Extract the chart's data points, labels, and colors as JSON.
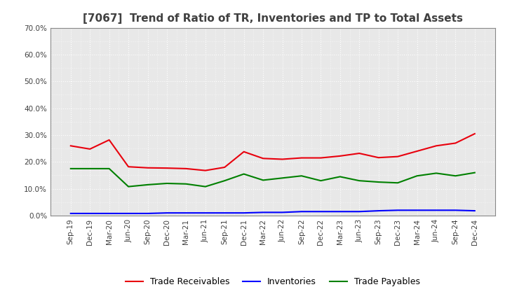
{
  "title": "[7067]  Trend of Ratio of TR, Inventories and TP to Total Assets",
  "x_labels": [
    "Sep-19",
    "Dec-19",
    "Mar-20",
    "Jun-20",
    "Sep-20",
    "Dec-20",
    "Mar-21",
    "Jun-21",
    "Sep-21",
    "Dec-21",
    "Mar-22",
    "Jun-22",
    "Sep-22",
    "Dec-22",
    "Mar-23",
    "Jun-23",
    "Sep-23",
    "Dec-23",
    "Mar-24",
    "Jun-24",
    "Sep-24",
    "Dec-24"
  ],
  "trade_receivables": [
    0.26,
    0.248,
    0.282,
    0.182,
    0.178,
    0.177,
    0.175,
    0.168,
    0.18,
    0.238,
    0.213,
    0.21,
    0.215,
    0.215,
    0.222,
    0.232,
    0.216,
    0.22,
    0.24,
    0.26,
    0.27,
    0.305
  ],
  "inventories": [
    0.008,
    0.008,
    0.008,
    0.008,
    0.008,
    0.01,
    0.01,
    0.01,
    0.01,
    0.01,
    0.012,
    0.012,
    0.015,
    0.015,
    0.015,
    0.015,
    0.018,
    0.02,
    0.02,
    0.02,
    0.02,
    0.018
  ],
  "trade_payables": [
    0.175,
    0.175,
    0.175,
    0.108,
    0.115,
    0.12,
    0.118,
    0.108,
    0.13,
    0.155,
    0.132,
    0.14,
    0.148,
    0.13,
    0.145,
    0.13,
    0.125,
    0.122,
    0.148,
    0.158,
    0.148,
    0.16
  ],
  "ylim": [
    0.0,
    0.7
  ],
  "yticks": [
    0.0,
    0.1,
    0.2,
    0.3,
    0.4,
    0.5,
    0.6,
    0.7
  ],
  "color_tr": "#e8000d",
  "color_inv": "#0000ff",
  "color_tp": "#008000",
  "legend_labels": [
    "Trade Receivables",
    "Inventories",
    "Trade Payables"
  ],
  "background_color": "#ffffff",
  "plot_bg_color": "#e8e8e8",
  "grid_color": "#ffffff",
  "title_color": "#404040",
  "tick_color": "#404040",
  "line_width": 1.5,
  "title_fontsize": 11,
  "tick_fontsize": 7.5,
  "legend_fontsize": 9
}
